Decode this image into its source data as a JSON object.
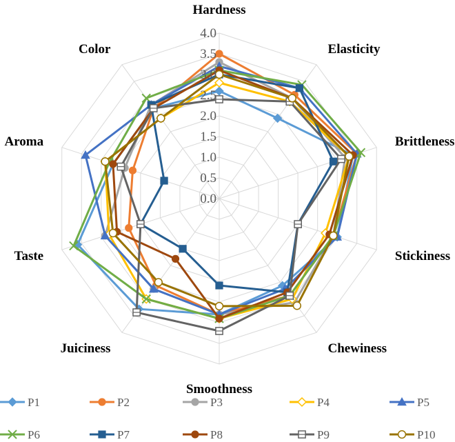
{
  "chart_data": {
    "type": "radar",
    "title": "",
    "axes": [
      "Hardness",
      "Elasticity",
      "Brittleness",
      "Stickiness",
      "Chewiness",
      "Smoothness",
      "Juiciness",
      "Taste",
      "Aroma",
      "Color"
    ],
    "range": [
      0,
      4
    ],
    "ticks": [
      "0.0",
      "0.5",
      "1.0",
      "1.5",
      "2.0",
      "2.5",
      "3.0",
      "3.5",
      "4.0"
    ],
    "grid": true,
    "legend_position": "bottom",
    "series": [
      {
        "name": "P1",
        "color": "#5B9BD5",
        "marker": "diamond",
        "values": [
          2.6,
          2.4,
          3.4,
          3.0,
          2.6,
          2.8,
          3.3,
          3.6,
          2.7,
          2.7
        ]
      },
      {
        "name": "P2",
        "color": "#ED7D31",
        "marker": "circle",
        "values": [
          3.5,
          3.1,
          3.5,
          2.9,
          2.9,
          2.8,
          2.6,
          2.3,
          2.2,
          2.7
        ]
      },
      {
        "name": "P3",
        "color": "#A5A5A5",
        "marker": "circle",
        "values": [
          3.3,
          3.0,
          3.2,
          2.9,
          3.1,
          2.8,
          2.7,
          2.9,
          2.4,
          2.8
        ]
      },
      {
        "name": "P4",
        "color": "#FFC000",
        "marker": "diamond-open",
        "values": [
          2.8,
          2.9,
          3.3,
          2.7,
          3.0,
          2.9,
          3.0,
          2.8,
          2.9,
          2.4
        ]
      },
      {
        "name": "P5",
        "color": "#4472C4",
        "marker": "triangle",
        "values": [
          3.2,
          3.3,
          3.5,
          3.0,
          2.7,
          2.8,
          2.7,
          2.9,
          3.4,
          2.8
        ]
      },
      {
        "name": "P6",
        "color": "#70AD47",
        "marker": "x",
        "values": [
          3.1,
          3.4,
          3.6,
          2.9,
          2.9,
          2.9,
          3.0,
          3.7,
          2.8,
          3.0
        ]
      },
      {
        "name": "P7",
        "color": "#255E91",
        "marker": "square",
        "values": [
          3.0,
          3.3,
          2.9,
          2.0,
          2.8,
          2.1,
          1.5,
          2.0,
          1.4,
          2.8
        ]
      },
      {
        "name": "P8",
        "color": "#9E480E",
        "marker": "circle",
        "values": [
          3.1,
          3.0,
          3.4,
          2.8,
          2.8,
          2.9,
          1.8,
          2.6,
          2.7,
          2.7
        ]
      },
      {
        "name": "P9",
        "color": "#636363",
        "marker": "square-open",
        "values": [
          2.4,
          2.9,
          3.1,
          2.0,
          2.9,
          3.2,
          3.4,
          2.0,
          2.5,
          2.7
        ]
      },
      {
        "name": "P10",
        "color": "#997300",
        "marker": "circle-open",
        "values": [
          3.0,
          3.0,
          3.3,
          2.9,
          3.2,
          2.6,
          2.5,
          2.7,
          2.9,
          2.4
        ]
      }
    ]
  }
}
